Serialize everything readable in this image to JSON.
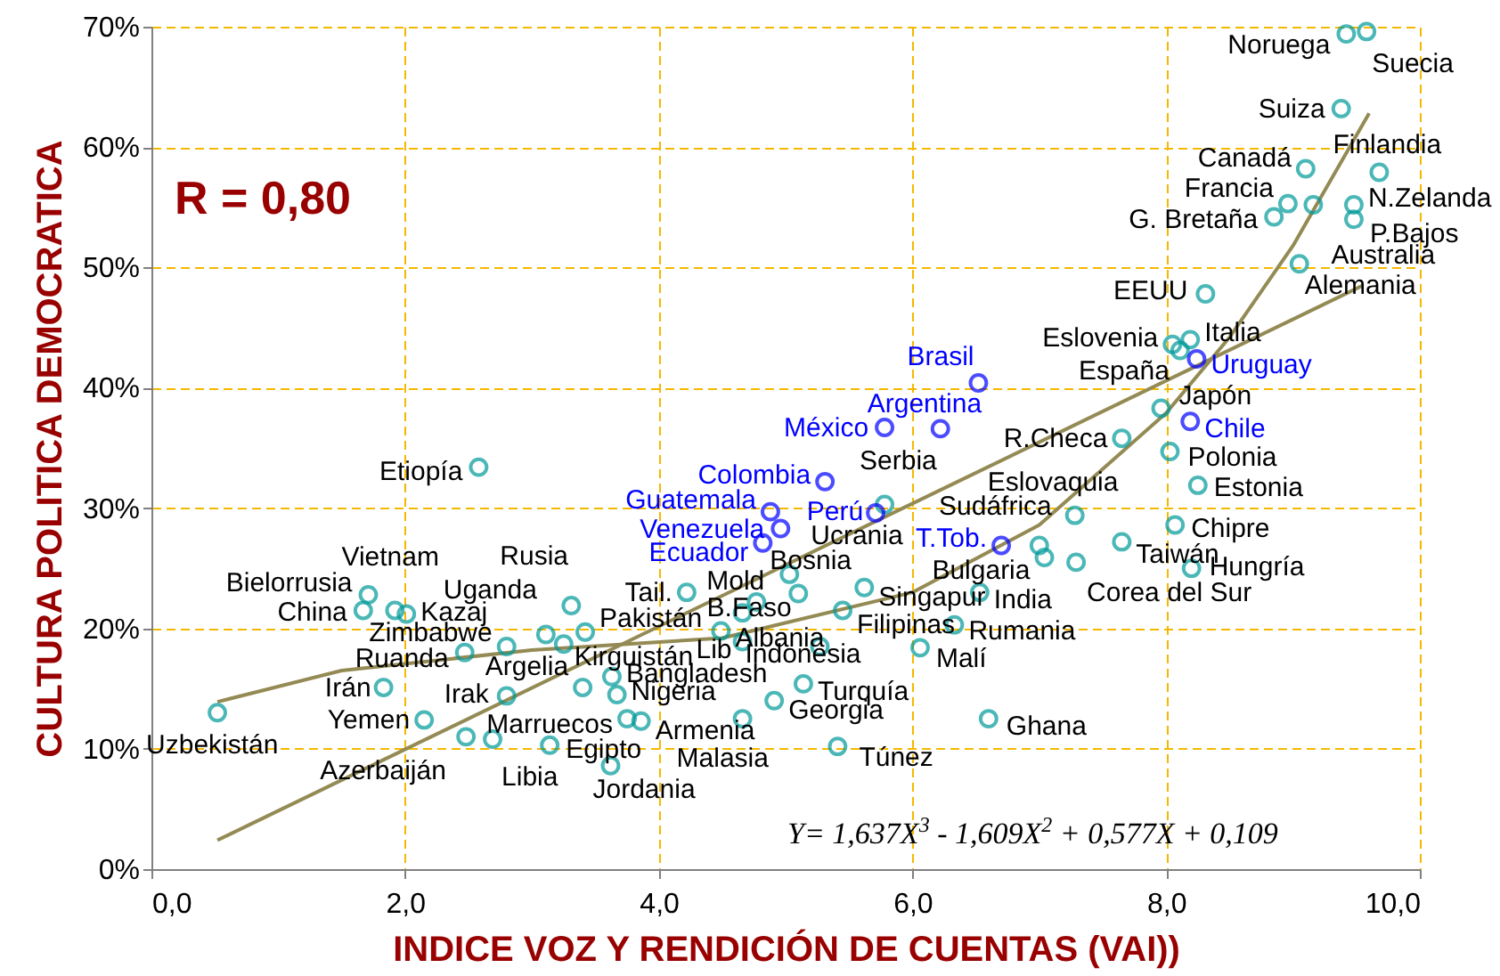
{
  "chart_data": {
    "type": "scatter",
    "xlabel": "INDICE VOZ Y RENDICIÓN DE CUENTAS (VAI))",
    "ylabel": "CULTURA POLITICA DEMOCRATICA",
    "xlim": [
      0,
      10
    ],
    "ylim": [
      0,
      70
    ],
    "xticks": [
      {
        "value": 0,
        "label": "0,0"
      },
      {
        "value": 2,
        "label": "2,0"
      },
      {
        "value": 4,
        "label": "4,0"
      },
      {
        "value": 6,
        "label": "6,0"
      },
      {
        "value": 8,
        "label": "8,0"
      },
      {
        "value": 10,
        "label": "10,0"
      }
    ],
    "yticks": [
      {
        "value": 0,
        "label": "0%"
      },
      {
        "value": 10,
        "label": "10%"
      },
      {
        "value": 20,
        "label": "20%"
      },
      {
        "value": 30,
        "label": "30%"
      },
      {
        "value": 40,
        "label": "40%"
      },
      {
        "value": 50,
        "label": "50%"
      },
      {
        "value": 60,
        "label": "60%"
      },
      {
        "value": 70,
        "label": "70%"
      }
    ],
    "grid": true,
    "marker": "circle",
    "series": [
      {
        "color": "#009999",
        "x": [
          0.52,
          1.83,
          2.15,
          2.48,
          2.69,
          3.14,
          3.62,
          2.8,
          1.71,
          1.67,
          1.92,
          2.01,
          2.47,
          2.8,
          3.11,
          3.31,
          3.42,
          3.25,
          3.4,
          3.63,
          3.67,
          3.75,
          3.86,
          4.22,
          4.77,
          4.66,
          4.49,
          4.66,
          5.27,
          5.03,
          5.1,
          5.62,
          5.45,
          4.66,
          4.91,
          5.14,
          5.41,
          6.06,
          6.33,
          6.53,
          6.6,
          5.78,
          7.0,
          7.04,
          7.28,
          7.65,
          7.29,
          7.65,
          8.03,
          8.25,
          8.07,
          8.2,
          7.96,
          8.11,
          8.05,
          8.19,
          8.31,
          9.05,
          9.16,
          9.48,
          9.48,
          8.85,
          8.96,
          9.1,
          9.68,
          9.38,
          9.42,
          9.58,
          2.58
        ],
        "values": [
          13.0,
          15.1,
          12.4,
          11.0,
          10.8,
          10.3,
          8.6,
          14.4,
          22.8,
          21.5,
          21.5,
          21.2,
          18.0,
          18.5,
          19.5,
          21.9,
          19.7,
          18.7,
          15.1,
          16.0,
          14.5,
          12.5,
          12.3,
          23.0,
          22.2,
          21.3,
          19.8,
          18.9,
          18.5,
          24.5,
          22.9,
          23.4,
          21.5,
          12.5,
          14.0,
          15.4,
          10.2,
          18.4,
          20.3,
          23.0,
          12.5,
          30.3,
          26.9,
          25.9,
          29.4,
          27.2,
          25.5,
          35.8,
          34.7,
          31.9,
          28.6,
          25.0,
          38.3,
          43.1,
          43.6,
          44.0,
          47.8,
          50.3,
          55.2,
          55.2,
          54.0,
          54.2,
          55.3,
          58.2,
          57.9,
          63.2,
          69.4,
          69.6,
          33.4
        ]
      },
      {
        "color": "#0000ff",
        "x": [
          6.52,
          5.78,
          6.22,
          5.31,
          4.88,
          5.71,
          4.96,
          4.82,
          6.7,
          8.24,
          8.19
        ],
        "values": [
          40.4,
          36.7,
          36.6,
          32.2,
          29.7,
          29.6,
          28.3,
          27.1,
          26.9,
          42.4,
          37.2
        ]
      },
      {
        "type": "line",
        "marker": "none",
        "color": "#948a54",
        "x": [
          0.52,
          1.5,
          3,
          4.5,
          6,
          7,
          8,
          8.5,
          9,
          9.6
        ],
        "values": [
          13.9,
          16.5,
          18.2,
          19.2,
          23.0,
          28.6,
          37.9,
          44.2,
          51.8,
          62.8
        ]
      },
      {
        "type": "line",
        "marker": "none",
        "color": "#948a54",
        "x": [
          0.52,
          9.55
        ],
        "values": [
          2.4,
          48.5
        ]
      }
    ],
    "annotations": [
      "R = 0,80",
      "Y= 1,637X$^{3}$ - 1,609X$^{2}$ + 0,577X + 0,109",
      {
        "text": "Uzbekistán",
        "x": 0.52,
        "y": 13.0
      },
      {
        "text": "Irán",
        "x": 1.83,
        "y": 15.1
      },
      {
        "text": "Yemen",
        "x": 2.15,
        "y": 12.4
      },
      {
        "text": "Azerbaiján",
        "x": 2.48,
        "y": 11.0
      },
      {
        "text": "Libia",
        "x": 2.69,
        "y": 10.8
      },
      {
        "text": "Egipto",
        "x": 3.14,
        "y": 10.3
      },
      {
        "text": "Jordania",
        "x": 3.62,
        "y": 8.6
      },
      {
        "text": "Irak",
        "x": 2.8,
        "y": 14.4
      },
      {
        "text": "Bielorrusia",
        "x": 1.71,
        "y": 22.8
      },
      {
        "text": "China",
        "x": 1.67,
        "y": 21.5
      },
      {
        "text": "Vietnam",
        "x": 1.92,
        "y": 21.5
      },
      {
        "text": "Kazaj",
        "x": 2.01,
        "y": 21.2
      },
      {
        "text": "Ruanda",
        "x": 2.47,
        "y": 18.0
      },
      {
        "text": "Zimbabwe",
        "x": 2.8,
        "y": 18.5
      },
      {
        "text": "Uganda",
        "x": 3.11,
        "y": 19.5
      },
      {
        "text": "Rusia",
        "x": 3.31,
        "y": 21.9
      },
      {
        "text": "Pakistán",
        "x": 3.42,
        "y": 19.7
      },
      {
        "text": "Kirguistán",
        "x": 3.25,
        "y": 18.7
      },
      {
        "text": "Argelia",
        "x": 3.4,
        "y": 15.1
      },
      {
        "text": "Bangladesh",
        "x": 3.63,
        "y": 16.0
      },
      {
        "text": "Nigeria",
        "x": 3.67,
        "y": 14.5
      },
      {
        "text": "Marruecos",
        "x": 3.75,
        "y": 12.5
      },
      {
        "text": "Armenia",
        "x": 3.86,
        "y": 12.3
      },
      {
        "text": "Tail.",
        "x": 4.22,
        "y": 23.0
      },
      {
        "text": "Mold",
        "x": 4.77,
        "y": 22.2
      },
      {
        "text": "B.Faso",
        "x": 4.66,
        "y": 21.3
      },
      {
        "text": "Albania",
        "x": 4.49,
        "y": 19.8
      },
      {
        "text": "Lib",
        "x": 4.66,
        "y": 18.9
      },
      {
        "text": "Indonesia",
        "x": 5.27,
        "y": 18.5
      },
      {
        "text": "Bosnia",
        "x": 5.03,
        "y": 24.5
      },
      {
        "text": "Ucrania",
        "x": 5.1,
        "y": 22.9
      },
      {
        "text": "Singapur",
        "x": 5.62,
        "y": 23.4
      },
      {
        "text": "Filipinas",
        "x": 5.45,
        "y": 21.5
      },
      {
        "text": "Malasia",
        "x": 4.66,
        "y": 12.5
      },
      {
        "text": "Georgia",
        "x": 4.91,
        "y": 14.0
      },
      {
        "text": "Turquía",
        "x": 5.14,
        "y": 15.4
      },
      {
        "text": "Túnez",
        "x": 5.41,
        "y": 10.2
      },
      {
        "text": "Malí",
        "x": 6.06,
        "y": 18.4
      },
      {
        "text": "Rumania",
        "x": 6.33,
        "y": 20.3
      },
      {
        "text": "India",
        "x": 6.53,
        "y": 23.0
      },
      {
        "text": "Ghana",
        "x": 6.6,
        "y": 12.5
      },
      {
        "text": "Serbia",
        "x": 5.78,
        "y": 30.3
      },
      {
        "text": "Sudáfrica",
        "x": 7.0,
        "y": 26.9
      },
      {
        "text": "Bulgaria",
        "x": 7.04,
        "y": 25.9
      },
      {
        "text": "Eslovaquia",
        "x": 7.28,
        "y": 29.4
      },
      {
        "text": "Taiwán",
        "x": 7.65,
        "y": 27.2
      },
      {
        "text": "Corea del Sur",
        "x": 7.29,
        "y": 25.5
      },
      {
        "text": "R.Checa",
        "x": 7.65,
        "y": 35.8
      },
      {
        "text": "Polonia",
        "x": 8.03,
        "y": 34.7
      },
      {
        "text": "Estonia",
        "x": 8.25,
        "y": 31.9
      },
      {
        "text": "Chipre",
        "x": 8.07,
        "y": 28.6
      },
      {
        "text": "Hungría",
        "x": 8.2,
        "y": 25.0
      },
      {
        "text": "Japón",
        "x": 7.96,
        "y": 38.3
      },
      {
        "text": "España",
        "x": 8.11,
        "y": 43.1
      },
      {
        "text": "Eslovenia",
        "x": 8.05,
        "y": 43.6
      },
      {
        "text": "Italia",
        "x": 8.19,
        "y": 44.0
      },
      {
        "text": "EEUU",
        "x": 8.31,
        "y": 47.8
      },
      {
        "text": "Alemania",
        "x": 9.05,
        "y": 50.3
      },
      {
        "text": "Australia",
        "x": 9.16,
        "y": 55.2
      },
      {
        "text": "N.Zelanda",
        "x": 9.48,
        "y": 55.2
      },
      {
        "text": "P.Bajos",
        "x": 9.48,
        "y": 54.0
      },
      {
        "text": "G. Bretaña",
        "x": 8.85,
        "y": 54.2
      },
      {
        "text": "Francia",
        "x": 8.96,
        "y": 55.3
      },
      {
        "text": "Canadá",
        "x": 9.1,
        "y": 58.2
      },
      {
        "text": "Finlandia",
        "x": 9.68,
        "y": 57.9
      },
      {
        "text": "Suiza",
        "x": 9.38,
        "y": 63.2
      },
      {
        "text": "Noruega",
        "x": 9.42,
        "y": 69.4
      },
      {
        "text": "Suecia",
        "x": 9.58,
        "y": 69.6
      },
      {
        "text": "Etiopía",
        "x": 2.58,
        "y": 33.4
      },
      {
        "text": "Brasil",
        "x": 6.52,
        "y": 40.4
      },
      {
        "text": "México",
        "x": 5.78,
        "y": 36.7
      },
      {
        "text": "Argentina",
        "x": 6.22,
        "y": 36.6
      },
      {
        "text": "Colombia",
        "x": 5.31,
        "y": 32.2
      },
      {
        "text": "Guatemala",
        "x": 4.88,
        "y": 29.7
      },
      {
        "text": "Perú",
        "x": 5.71,
        "y": 29.6
      },
      {
        "text": "Venezuela",
        "x": 4.96,
        "y": 28.3
      },
      {
        "text": "Ecuador",
        "x": 4.82,
        "y": 27.1
      },
      {
        "text": "T.Tob.",
        "x": 6.7,
        "y": 26.9
      },
      {
        "text": "Uruguay",
        "x": 8.24,
        "y": 42.4
      },
      {
        "text": "Chile",
        "x": 8.19,
        "y": 37.2
      }
    ]
  }
}
